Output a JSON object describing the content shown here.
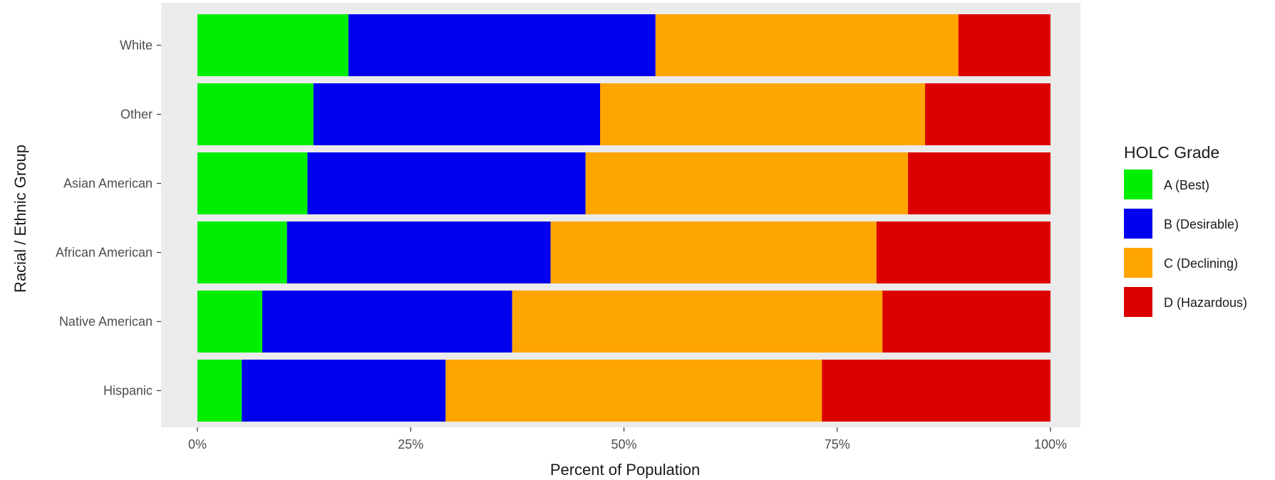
{
  "chart_data": {
    "type": "bar",
    "orientation": "horizontal",
    "stacked": true,
    "categories": [
      "White",
      "Other",
      "Asian American",
      "African American",
      "Native American",
      "Hispanic"
    ],
    "series": [
      {
        "name": "A (Best)",
        "color": "#00ee00",
        "values": [
          17.7,
          13.6,
          12.9,
          10.5,
          7.6,
          5.2
        ]
      },
      {
        "name": "B (Desirable)",
        "color": "#0000ee",
        "values": [
          36.0,
          33.6,
          32.6,
          30.9,
          29.3,
          23.9
        ]
      },
      {
        "name": "C (Declining)",
        "color": "#ffa500",
        "values": [
          35.5,
          38.1,
          37.8,
          38.2,
          43.4,
          44.1
        ]
      },
      {
        "name": "D (Hazardous)",
        "color": "#dd0000",
        "values": [
          10.8,
          14.7,
          16.7,
          20.4,
          19.7,
          26.8
        ]
      }
    ],
    "xlim": [
      0,
      100
    ],
    "xticks": [
      0,
      25,
      50,
      75,
      100
    ],
    "xtick_labels": [
      "0%",
      "25%",
      "50%",
      "75%",
      "100%"
    ],
    "xlabel": "Percent of Population",
    "ylabel": "Racial / Ethnic Group",
    "legend": {
      "title": "HOLC Grade",
      "position": "right"
    },
    "panel_background": "#ebebeb",
    "grid": true
  }
}
